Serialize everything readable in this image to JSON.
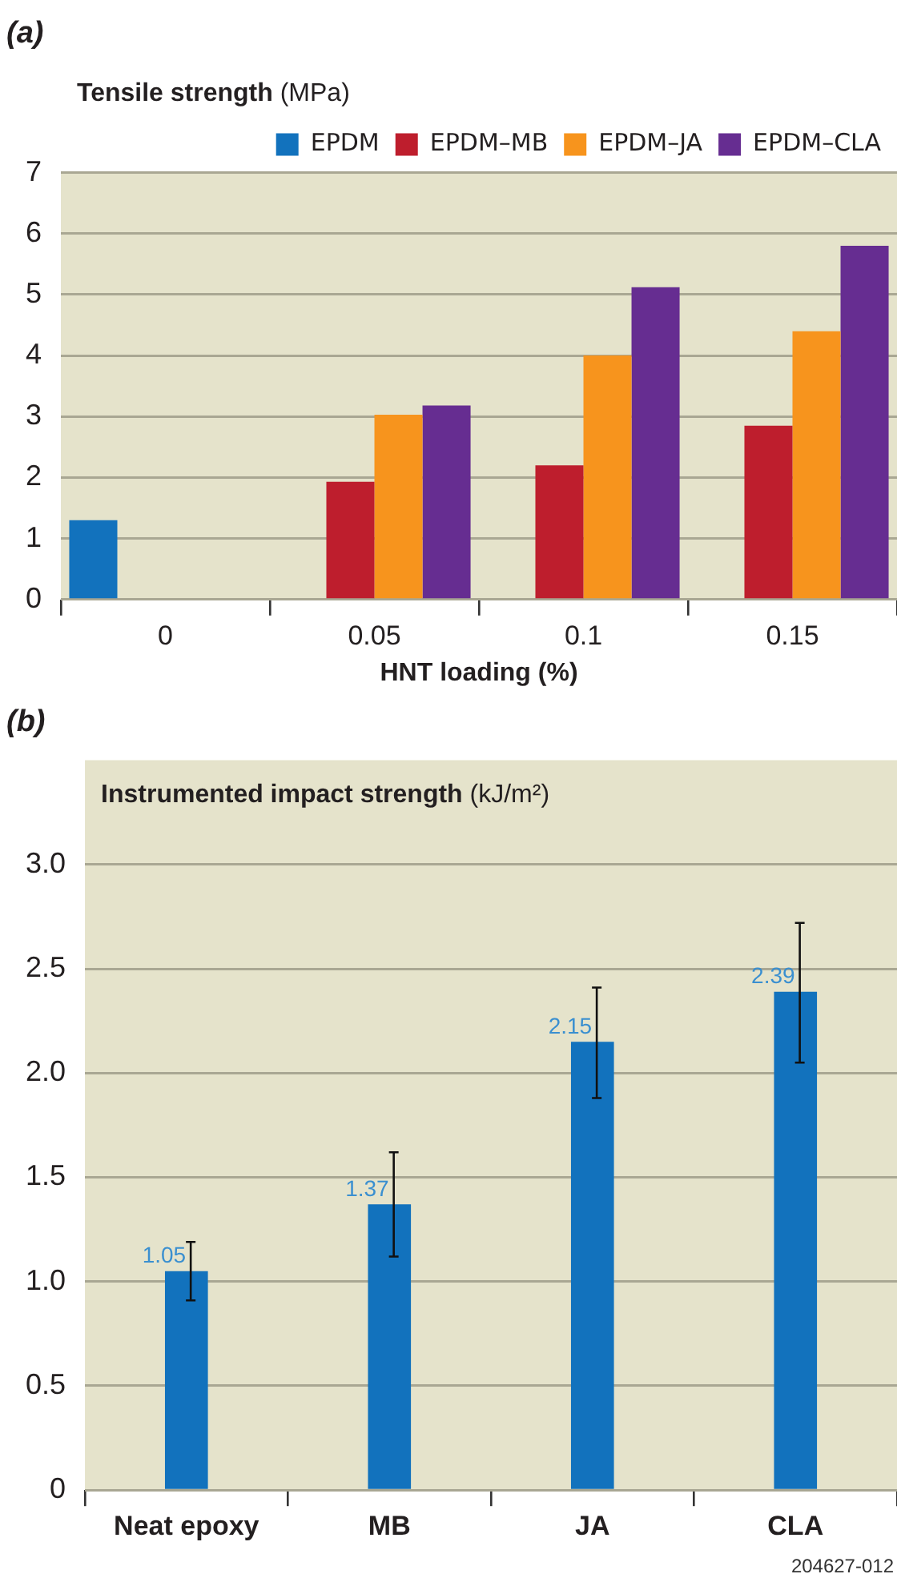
{
  "chart_data": [
    {
      "type": "bar",
      "title": "(a)",
      "ylabel": "Tensile strength (MPa)",
      "xlabel": "HNT loading (%)",
      "categories": [
        "0",
        "0.05",
        "0.1",
        "0.15"
      ],
      "series": [
        {
          "name": "EPDM",
          "color": "#1272bd",
          "values": [
            1.3,
            null,
            null,
            null
          ]
        },
        {
          "name": "EPDM–MB",
          "color": "#be1e2d",
          "values": [
            null,
            1.93,
            2.2,
            2.85
          ]
        },
        {
          "name": "EPDM–JA",
          "color": "#f7941d",
          "values": [
            null,
            3.03,
            4.0,
            4.4
          ]
        },
        {
          "name": "EPDM–CLA",
          "color": "#662d91",
          "values": [
            null,
            3.18,
            5.12,
            5.8
          ]
        }
      ],
      "ylim": [
        0,
        7
      ],
      "yticks": [
        0,
        1,
        2,
        3,
        4,
        5,
        6,
        7
      ],
      "grid": "y",
      "legend": "top"
    },
    {
      "type": "bar",
      "title": "(b)",
      "ylabel": "Instrumented impact strength (kJ/m²)",
      "categories": [
        "Neat epoxy",
        "MB",
        "JA",
        "CLA"
      ],
      "values": [
        1.05,
        1.37,
        2.15,
        2.39
      ],
      "color": "#1272bd",
      "errors": [
        [
          0.91,
          1.19
        ],
        [
          1.12,
          1.62
        ],
        [
          1.88,
          2.41
        ],
        [
          2.05,
          2.72
        ]
      ],
      "data_labels": true,
      "ylim": [
        0,
        3.5
      ],
      "yticks": [
        0,
        0.5,
        {
          "value": 1,
          "label": "1.0"
        },
        1.5,
        {
          "value": 2,
          "label": "2.0"
        },
        2.5,
        {
          "value": 3,
          "label": "3.0"
        }
      ],
      "grid": "y",
      "annotations": [
        "204627-012"
      ]
    }
  ]
}
